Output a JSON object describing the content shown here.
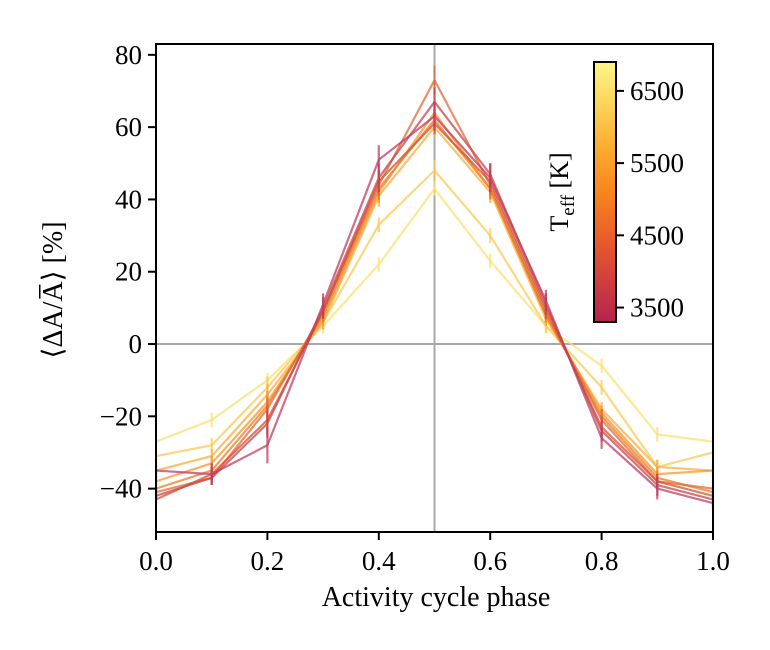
{
  "chart_data": {
    "type": "line",
    "xlabel": "Activity cycle phase",
    "ylabel": "⟨ΔA/A̅⟩ [%]",
    "xlim": [
      0.0,
      1.0
    ],
    "ylim": [
      -52,
      83
    ],
    "x_ticks": [
      0.0,
      0.2,
      0.4,
      0.6,
      0.8,
      1.0
    ],
    "x_tick_labels": [
      "0.0",
      "0.2",
      "0.4",
      "0.6",
      "0.8",
      "1.0"
    ],
    "y_ticks": [
      -40,
      -20,
      0,
      20,
      40,
      60,
      80
    ],
    "y_tick_labels": [
      "−40",
      "−20",
      "0",
      "20",
      "40",
      "60",
      "80"
    ],
    "reference_lines": {
      "vertical_x": 0.5,
      "horizontal_y": 0
    },
    "x": [
      0.0,
      0.1,
      0.2,
      0.3,
      0.4,
      0.5,
      0.6,
      0.7,
      0.8,
      0.9,
      1.0
    ],
    "colorbar": {
      "label_main": "T",
      "label_sub": "eff",
      "label_unit": " [K]",
      "range": [
        3300,
        6900
      ],
      "ticks": [
        3500,
        4500,
        5500,
        6500
      ],
      "tick_labels": [
        "3500",
        "4500",
        "5500",
        "6500"
      ],
      "colormap": [
        "#b5244c",
        "#d1403d",
        "#eb5f2a",
        "#f8861c",
        "#fbab2f",
        "#fcd35a",
        "#fdf68a"
      ]
    },
    "series": [
      {
        "name": "3400 K",
        "teff": 3400,
        "color": "#c03c62",
        "values": [
          -35,
          -36,
          -28,
          11,
          51,
          63,
          46,
          12,
          -26,
          -40,
          -44
        ],
        "errors": [
          2,
          3,
          5,
          3,
          4,
          4,
          4,
          3,
          3,
          3,
          2
        ]
      },
      {
        "name": "3700 K",
        "teff": 3700,
        "color": "#c74548",
        "values": [
          -42,
          -37,
          -22,
          10,
          46,
          67,
          47,
          11,
          -24,
          -39,
          -43
        ],
        "errors": [
          2,
          2,
          4,
          3,
          4,
          4,
          3,
          3,
          3,
          3,
          2
        ]
      },
      {
        "name": "4000 K",
        "teff": 4000,
        "color": "#d4502f",
        "values": [
          -43,
          -36,
          -21,
          9,
          45,
          61,
          45,
          10,
          -23,
          -38,
          -42
        ],
        "errors": [
          2,
          2,
          4,
          2,
          3,
          3,
          3,
          3,
          3,
          2,
          2
        ]
      },
      {
        "name": "4300 K",
        "teff": 4300,
        "color": "#e06b3a",
        "values": [
          -41,
          -37,
          -18,
          9,
          44,
          73,
          44,
          9,
          -21,
          -38,
          -40
        ],
        "errors": [
          2,
          2,
          3,
          2,
          3,
          4,
          3,
          2,
          3,
          2,
          2
        ]
      },
      {
        "name": "4700 K",
        "teff": 4700,
        "color": "#ef7b20",
        "values": [
          -40,
          -35,
          -17,
          8,
          43,
          62,
          43,
          8,
          -20,
          -37,
          -41
        ],
        "errors": [
          2,
          2,
          3,
          2,
          3,
          3,
          3,
          2,
          2,
          2,
          2
        ]
      },
      {
        "name": "5100 K",
        "teff": 5100,
        "color": "#f7962a",
        "values": [
          -38,
          -33,
          -16,
          7,
          42,
          64,
          43,
          8,
          -19,
          -36,
          -35
        ],
        "errors": [
          2,
          2,
          3,
          2,
          3,
          3,
          3,
          2,
          2,
          2,
          2
        ]
      },
      {
        "name": "5500 K",
        "teff": 5500,
        "color": "#f9ae3c",
        "values": [
          -35,
          -31,
          -14,
          6,
          41,
          60,
          42,
          7,
          -18,
          -34,
          -35
        ],
        "errors": [
          2,
          2,
          3,
          2,
          3,
          3,
          3,
          2,
          2,
          2,
          2
        ]
      },
      {
        "name": "6000 K",
        "teff": 6000,
        "color": "#fbc955",
        "values": [
          -31,
          -28,
          -12,
          6,
          33,
          48,
          30,
          5,
          -12,
          -34,
          -30
        ],
        "errors": [
          2,
          2,
          3,
          2,
          2,
          3,
          2,
          2,
          2,
          2,
          2
        ]
      },
      {
        "name": "6500 K",
        "teff": 6500,
        "color": "#fbe074",
        "values": [
          -27,
          -21,
          -10,
          5,
          22,
          43,
          23,
          5,
          -6,
          -25,
          -27
        ],
        "errors": [
          2,
          2,
          2,
          2,
          2,
          2,
          2,
          2,
          2,
          2,
          2
        ]
      }
    ]
  }
}
